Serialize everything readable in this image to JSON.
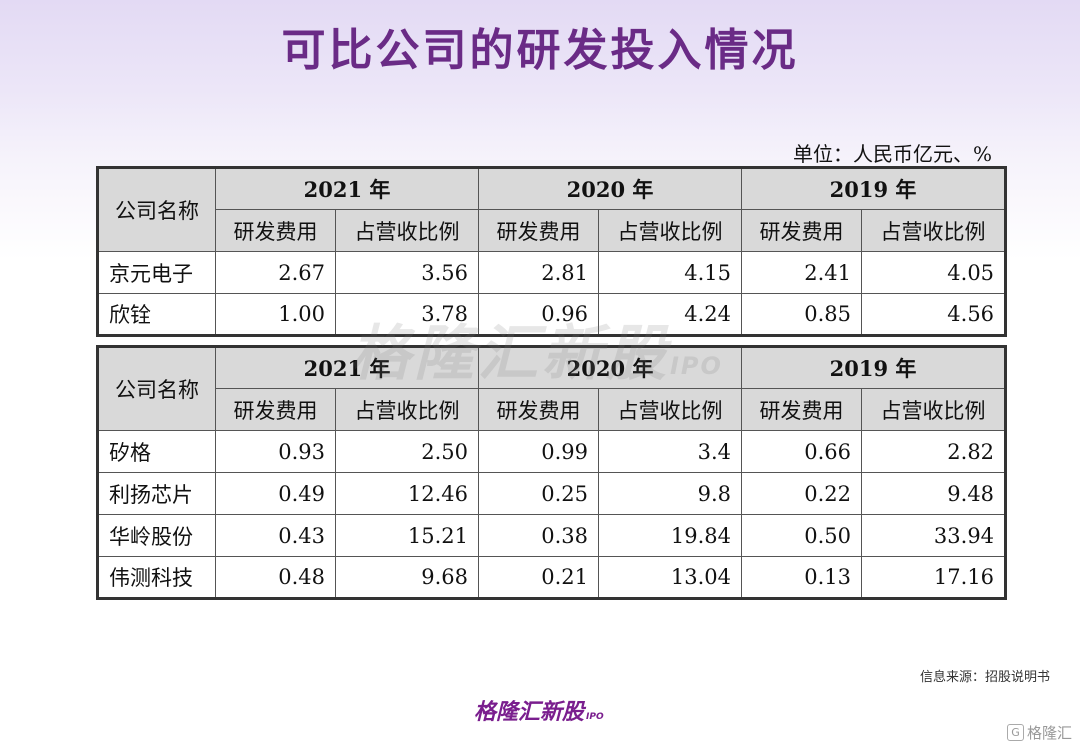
{
  "title": "可比公司的研发投入情况",
  "unit_note": "单位：人民币亿元、%",
  "watermark": {
    "text": "格隆汇新股",
    "sub": "IPO"
  },
  "header": {
    "company_col": "公司名称",
    "years": [
      "2021 年",
      "2020 年",
      "2019 年"
    ],
    "sub_cols": [
      "研发费用",
      "占营收比例"
    ]
  },
  "table1": {
    "rows": [
      {
        "name": "京元电子",
        "values": [
          "2.67",
          "3.56",
          "2.81",
          "4.15",
          "2.41",
          "4.05"
        ]
      },
      {
        "name": "欣铨",
        "values": [
          "1.00",
          "3.78",
          "0.96",
          "4.24",
          "0.85",
          "4.56"
        ]
      }
    ]
  },
  "table2": {
    "rows": [
      {
        "name": "矽格",
        "values": [
          "0.93",
          "2.50",
          "0.99",
          "3.4",
          "0.66",
          "2.82"
        ]
      },
      {
        "name": "利扬芯片",
        "values": [
          "0.49",
          "12.46",
          "0.25",
          "9.8",
          "0.22",
          "9.48"
        ]
      },
      {
        "name": "华岭股份",
        "values": [
          "0.43",
          "15.21",
          "0.38",
          "19.84",
          "0.50",
          "33.94"
        ]
      },
      {
        "name": "伟测科技",
        "values": [
          "0.48",
          "9.68",
          "0.21",
          "13.04",
          "0.13",
          "17.16"
        ]
      }
    ]
  },
  "source": "信息来源：招股说明书",
  "footer_logo": {
    "text": "格隆汇新股",
    "sub": "IPO"
  },
  "corner_brand": {
    "icon": "G",
    "text": "格隆汇"
  }
}
